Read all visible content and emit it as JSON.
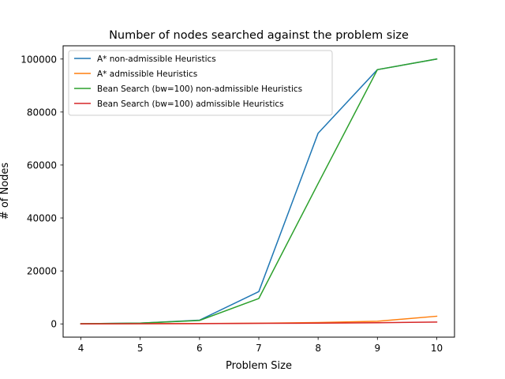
{
  "chart_data": {
    "type": "line",
    "title": "Number of nodes searched against the problem size",
    "xlabel": "Problem Size",
    "ylabel": "# of Nodes",
    "x": [
      4,
      5,
      6,
      7,
      8,
      9,
      10
    ],
    "xlim": [
      3.7,
      10.3
    ],
    "ylim": [
      -5000,
      105000
    ],
    "xticks": [
      "4",
      "5",
      "6",
      "7",
      "8",
      "9",
      "10"
    ],
    "yticks": [
      0,
      20000,
      40000,
      60000,
      80000,
      100000
    ],
    "grid": false,
    "legend_position": "upper-left",
    "series": [
      {
        "name": "A* non-admissible Heuristics",
        "color": "#1f77b4",
        "values": [
          50,
          300,
          1400,
          12200,
          72000,
          96000,
          100000
        ]
      },
      {
        "name": "A* admissible Heuristics",
        "color": "#ff7f0e",
        "values": [
          50,
          100,
          150,
          250,
          500,
          1000,
          2900
        ]
      },
      {
        "name": "Bean Search (bw=100) non-admissible Heuristics",
        "color": "#2ca02c",
        "values": [
          50,
          300,
          1300,
          9600,
          53000,
          96000,
          100000
        ]
      },
      {
        "name": "Bean Search (bw=100) admissible Heuristics",
        "color": "#d62728",
        "values": [
          30,
          50,
          100,
          200,
          300,
          450,
          700
        ]
      }
    ]
  }
}
